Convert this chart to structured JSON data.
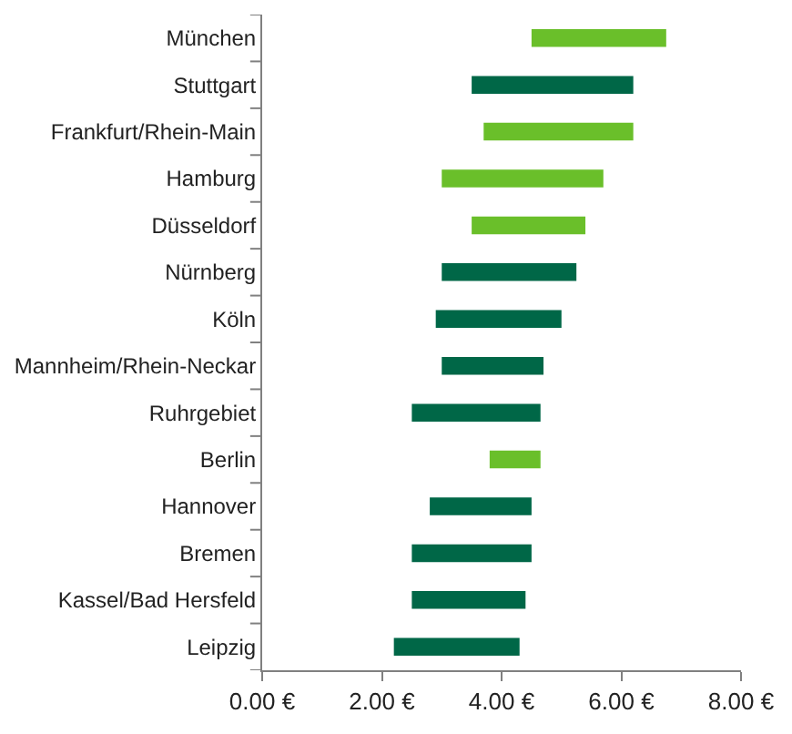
{
  "chart_data": {
    "type": "bar",
    "orientation": "horizontal",
    "categories": [
      "München",
      "Stuttgart",
      "Frankfurt/Rhein-Main",
      "Hamburg",
      "Düsseldorf",
      "Nürnberg",
      "Köln",
      "Mannheim/Rhein-Neckar",
      "Ruhrgebiet",
      "Berlin",
      "Hannover",
      "Bremen",
      "Kassel/Bad Hersfeld",
      "Leipzig"
    ],
    "base": [
      4.5,
      3.5,
      3.7,
      3.0,
      3.5,
      3.0,
      2.9,
      3.0,
      2.5,
      3.8,
      2.8,
      2.5,
      2.5,
      2.2
    ],
    "values": [
      2.25,
      2.7,
      2.5,
      2.7,
      1.9,
      2.25,
      2.1,
      1.7,
      2.15,
      0.85,
      1.7,
      2.0,
      1.9,
      2.1
    ],
    "colors": [
      "#6abf2a",
      "#006747",
      "#6abf2a",
      "#6abf2a",
      "#6abf2a",
      "#006747",
      "#006747",
      "#006747",
      "#006747",
      "#6abf2a",
      "#006747",
      "#006747",
      "#006747",
      "#006747"
    ],
    "xlim": [
      0,
      8
    ],
    "xticks": [
      {
        "value": 0,
        "label": "0.00 €"
      },
      {
        "value": 2,
        "label": "2.00 €"
      },
      {
        "value": 4,
        "label": "4.00 €"
      },
      {
        "value": 6,
        "label": "6.00 €"
      },
      {
        "value": 8,
        "label": "8.00 €"
      }
    ],
    "legend": false
  }
}
